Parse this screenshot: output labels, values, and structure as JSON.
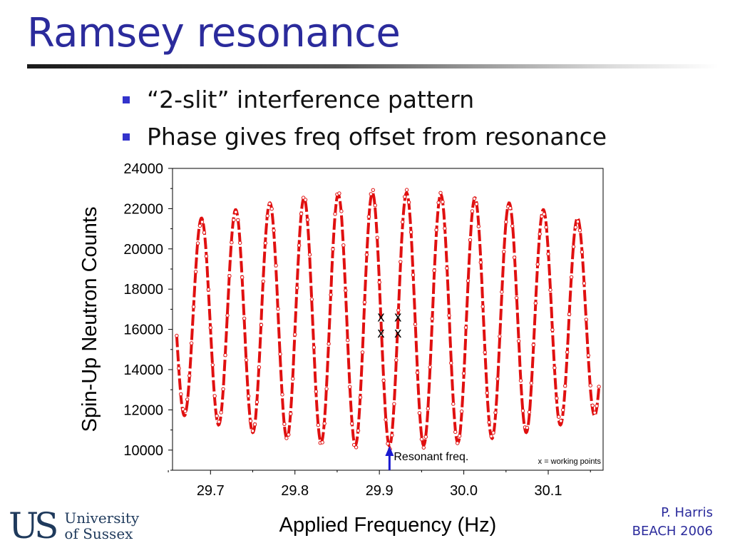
{
  "slide": {
    "title": "Ramsey resonance",
    "bullets": [
      "“2-slit” interference pattern",
      "Phase gives freq offset from resonance"
    ],
    "credit_line1": "P. Harris",
    "credit_line2": "BEACH 2006",
    "logo_mark": "US",
    "logo_line1": "University",
    "logo_line2": "of Sussex",
    "colors": {
      "title": "#2b2b9c",
      "bullet": "#3333cc",
      "data": "#e01010",
      "arrow": "#1a1ad0",
      "credit": "#2b2b9c"
    }
  },
  "chart_data": {
    "type": "line",
    "xlabel": "Applied Frequency (Hz)",
    "ylabel": "Spin-Up Neutron Counts",
    "xlim": [
      29.655,
      30.165
    ],
    "ylim": [
      9000,
      24000
    ],
    "xticks": [
      29.7,
      29.8,
      29.9,
      30.0,
      30.1
    ],
    "xtick_labels": [
      "29.7",
      "29.8",
      "29.9",
      "30.0",
      "30.1"
    ],
    "yticks": [
      10000,
      12000,
      14000,
      16000,
      18000,
      20000,
      22000,
      24000
    ],
    "ytick_labels": [
      "10000",
      "12000",
      "14000",
      "16000",
      "18000",
      "20000",
      "22000",
      "24000"
    ],
    "grid": false,
    "series": [
      {
        "kind": "fit-curve-and-points",
        "x_range": [
          29.66,
          30.16
        ],
        "center": 29.912,
        "fringe_period": 0.0405,
        "midline": 16500,
        "amplitude_at_center": -6300,
        "amplitude_at_edges": -4700,
        "envelope_halfwidth": 0.25,
        "point_step": 0.0025
      }
    ],
    "working_points": [
      {
        "x": 29.902,
        "y": 16650
      },
      {
        "x": 29.902,
        "y": 15850
      },
      {
        "x": 29.922,
        "y": 16650
      },
      {
        "x": 29.922,
        "y": 15850
      }
    ],
    "working_point_marker": "x",
    "resonance": {
      "x": 29.912,
      "label": "Resonant freq."
    },
    "legend_note": "x = working points"
  }
}
